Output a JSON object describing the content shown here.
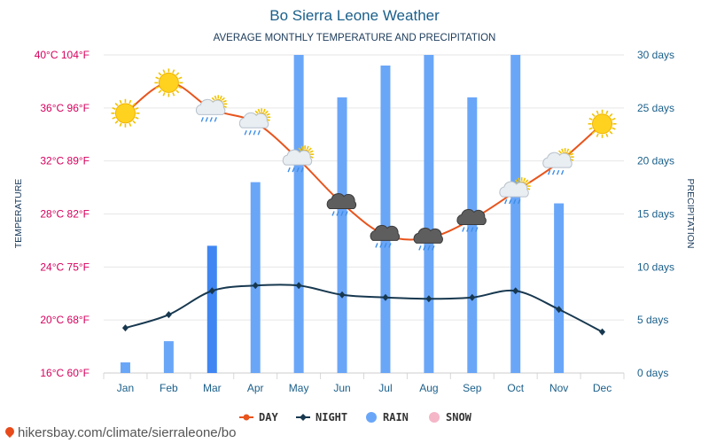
{
  "colors": {
    "day": "#e8541c",
    "night": "#17384f",
    "rain": "#6aa6f8",
    "rain_dark": "#3f86f2",
    "snow": "#f5b6c8",
    "axis_left": "#d6005d",
    "axis_right": "#1a5f8a",
    "title": "#1a5f8a"
  },
  "footer": {
    "text": "hikersbay.com/climate/sierraleone/bo"
  },
  "chart_data": {
    "type": "line",
    "title": "Bo Sierra Leone Weather",
    "subtitle": "AVERAGE MONTHLY TEMPERATURE AND PRECIPITATION",
    "ylabel_left": "TEMPERATURE",
    "ylabel_right": "PRECIPITATION",
    "categories": [
      "Jan",
      "Feb",
      "Mar",
      "Apr",
      "May",
      "Jun",
      "Jul",
      "Aug",
      "Sep",
      "Oct",
      "Nov",
      "Dec"
    ],
    "y_left": {
      "range": [
        16,
        40
      ],
      "ticks": [
        16,
        20,
        24,
        28,
        32,
        36,
        40
      ],
      "tick_labels": [
        "16°C 60°F",
        "20°C 68°F",
        "24°C 75°F",
        "28°C 82°F",
        "32°C 89°F",
        "36°C 96°F",
        "40°C 104°F"
      ]
    },
    "y_right": {
      "range": [
        0,
        30
      ],
      "ticks": [
        0,
        5,
        10,
        15,
        20,
        25,
        30
      ],
      "tick_labels": [
        "0 days",
        "5 days",
        "10 days",
        "15 days",
        "20 days",
        "25 days",
        "30 days"
      ]
    },
    "series": [
      {
        "name": "DAY",
        "type": "line",
        "values": [
          35.6,
          37.9,
          35.9,
          34.9,
          32.1,
          28.8,
          26.4,
          26.2,
          27.6,
          29.7,
          31.9,
          34.8
        ]
      },
      {
        "name": "NIGHT",
        "type": "line",
        "values": [
          19.4,
          20.4,
          22.2,
          22.6,
          22.6,
          21.9,
          21.7,
          21.6,
          21.7,
          22.2,
          20.8,
          19.1
        ]
      },
      {
        "name": "RAIN",
        "type": "bar",
        "values": [
          1,
          3,
          12,
          18,
          30,
          26,
          29,
          30,
          26,
          30,
          16,
          0
        ]
      },
      {
        "name": "SNOW",
        "type": "bar",
        "values": [
          0,
          0,
          0,
          0,
          0,
          0,
          0,
          0,
          0,
          0,
          0,
          0
        ]
      }
    ],
    "weather_icons": [
      "sun-icon",
      "sun-icon",
      "partly-cloudy-rain-icon",
      "partly-cloudy-rain-icon",
      "partly-cloudy-rain-icon",
      "storm-cloud-rain-icon",
      "storm-cloud-rain-icon",
      "storm-cloud-rain-icon",
      "storm-cloud-rain-icon",
      "partly-cloudy-rain-icon",
      "partly-cloudy-rain-icon",
      "sun-icon"
    ],
    "legend": [
      "DAY",
      "NIGHT",
      "RAIN",
      "SNOW"
    ],
    "legend_position": "bottom",
    "grid": true
  }
}
